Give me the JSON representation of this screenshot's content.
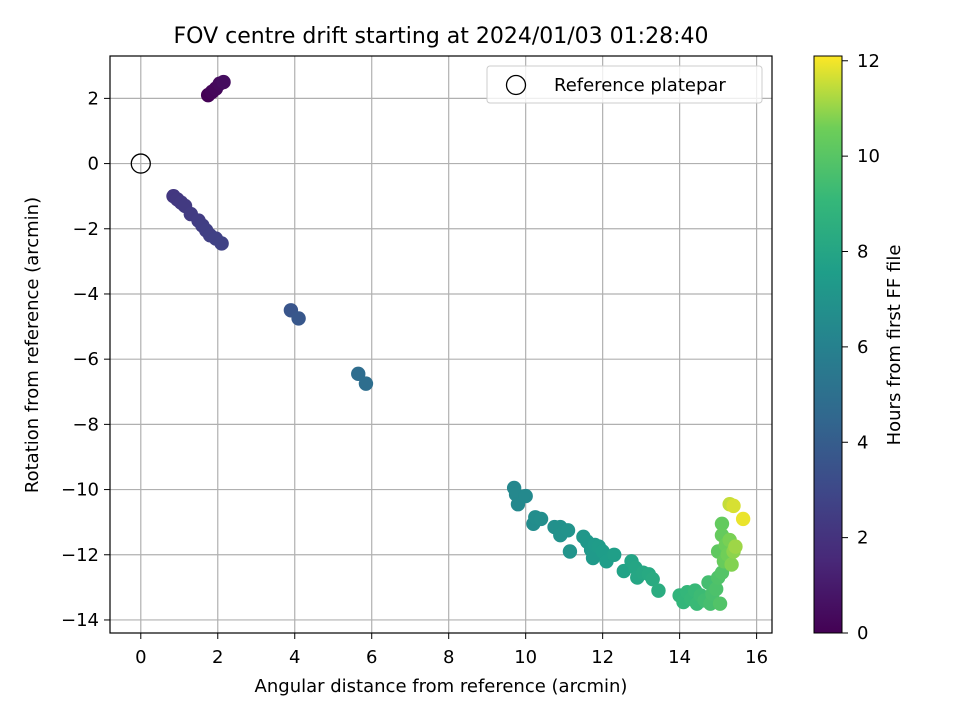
{
  "chart_data": {
    "type": "scatter",
    "title": "FOV centre drift starting at 2024/01/03 01:28:40",
    "xlabel": "Angular distance from reference (arcmin)",
    "ylabel": "Rotation from reference (arcmin)",
    "xlim": [
      -0.8,
      16.4
    ],
    "ylim": [
      -14.4,
      3.3
    ],
    "xticks": [
      0,
      2,
      4,
      6,
      8,
      10,
      12,
      14,
      16
    ],
    "yticks": [
      -14,
      -12,
      -10,
      -8,
      -6,
      -4,
      -2,
      0,
      2
    ],
    "grid": true,
    "legend": {
      "position": "top-right",
      "entries": [
        "Reference platepar"
      ]
    },
    "reference_point": {
      "x": 0,
      "y": 0,
      "label": "Reference platepar"
    },
    "colorbar": {
      "label": "Hours from first FF file",
      "min": 0,
      "max": 12.1,
      "ticks": [
        0,
        2,
        4,
        6,
        8,
        10,
        12
      ],
      "colormap": "viridis"
    },
    "points": [
      {
        "x": 1.75,
        "y": 2.1,
        "c": 0.05
      },
      {
        "x": 1.85,
        "y": 2.2,
        "c": 0.15
      },
      {
        "x": 1.95,
        "y": 2.3,
        "c": 0.25
      },
      {
        "x": 2.05,
        "y": 2.45,
        "c": 0.35
      },
      {
        "x": 2.15,
        "y": 2.5,
        "c": 0.45
      },
      {
        "x": 0.85,
        "y": -1.0,
        "c": 2.2
      },
      {
        "x": 0.95,
        "y": -1.1,
        "c": 2.25
      },
      {
        "x": 1.05,
        "y": -1.2,
        "c": 2.3
      },
      {
        "x": 1.15,
        "y": -1.3,
        "c": 2.35
      },
      {
        "x": 1.3,
        "y": -1.55,
        "c": 2.4
      },
      {
        "x": 1.5,
        "y": -1.75,
        "c": 2.45
      },
      {
        "x": 1.6,
        "y": -1.9,
        "c": 2.5
      },
      {
        "x": 1.7,
        "y": -2.05,
        "c": 2.55
      },
      {
        "x": 1.8,
        "y": -2.2,
        "c": 2.6
      },
      {
        "x": 1.95,
        "y": -2.3,
        "c": 2.65
      },
      {
        "x": 2.1,
        "y": -2.45,
        "c": 2.7
      },
      {
        "x": 3.9,
        "y": -4.5,
        "c": 3.6
      },
      {
        "x": 4.1,
        "y": -4.75,
        "c": 3.7
      },
      {
        "x": 5.65,
        "y": -6.45,
        "c": 4.8
      },
      {
        "x": 5.85,
        "y": -6.75,
        "c": 4.9
      },
      {
        "x": 9.7,
        "y": -9.95,
        "c": 6.3
      },
      {
        "x": 9.75,
        "y": -10.15,
        "c": 6.35
      },
      {
        "x": 9.8,
        "y": -10.45,
        "c": 6.4
      },
      {
        "x": 10.0,
        "y": -10.2,
        "c": 6.45
      },
      {
        "x": 10.2,
        "y": -11.05,
        "c": 6.6
      },
      {
        "x": 10.25,
        "y": -10.85,
        "c": 6.65
      },
      {
        "x": 10.4,
        "y": -10.9,
        "c": 6.7
      },
      {
        "x": 10.75,
        "y": -11.15,
        "c": 6.8
      },
      {
        "x": 10.9,
        "y": -11.15,
        "c": 6.85
      },
      {
        "x": 10.9,
        "y": -11.4,
        "c": 6.9
      },
      {
        "x": 11.1,
        "y": -11.25,
        "c": 6.95
      },
      {
        "x": 11.15,
        "y": -11.9,
        "c": 7.0
      },
      {
        "x": 11.5,
        "y": -11.45,
        "c": 7.2
      },
      {
        "x": 11.6,
        "y": -11.6,
        "c": 7.25
      },
      {
        "x": 11.7,
        "y": -11.85,
        "c": 7.3
      },
      {
        "x": 11.75,
        "y": -12.1,
        "c": 7.35
      },
      {
        "x": 11.8,
        "y": -11.7,
        "c": 7.4
      },
      {
        "x": 11.9,
        "y": -11.75,
        "c": 7.45
      },
      {
        "x": 12.0,
        "y": -11.9,
        "c": 7.5
      },
      {
        "x": 12.1,
        "y": -12.2,
        "c": 7.55
      },
      {
        "x": 12.3,
        "y": -12.0,
        "c": 7.65
      },
      {
        "x": 12.55,
        "y": -12.5,
        "c": 7.8
      },
      {
        "x": 12.75,
        "y": -12.2,
        "c": 7.9
      },
      {
        "x": 12.85,
        "y": -12.4,
        "c": 8.0
      },
      {
        "x": 12.9,
        "y": -12.7,
        "c": 8.05
      },
      {
        "x": 13.05,
        "y": -12.55,
        "c": 8.1
      },
      {
        "x": 13.2,
        "y": -12.6,
        "c": 8.2
      },
      {
        "x": 13.3,
        "y": -12.75,
        "c": 8.3
      },
      {
        "x": 13.45,
        "y": -13.1,
        "c": 8.4
      },
      {
        "x": 14.0,
        "y": -13.25,
        "c": 8.9
      },
      {
        "x": 14.1,
        "y": -13.45,
        "c": 8.95
      },
      {
        "x": 14.2,
        "y": -13.15,
        "c": 9.0
      },
      {
        "x": 14.3,
        "y": -13.35,
        "c": 9.1
      },
      {
        "x": 14.4,
        "y": -13.1,
        "c": 9.15
      },
      {
        "x": 14.45,
        "y": -13.5,
        "c": 9.2
      },
      {
        "x": 14.55,
        "y": -13.25,
        "c": 9.3
      },
      {
        "x": 14.65,
        "y": -13.4,
        "c": 9.4
      },
      {
        "x": 14.75,
        "y": -12.85,
        "c": 9.5
      },
      {
        "x": 14.8,
        "y": -13.5,
        "c": 9.55
      },
      {
        "x": 14.85,
        "y": -13.2,
        "c": 9.6
      },
      {
        "x": 14.95,
        "y": -13.05,
        "c": 9.7
      },
      {
        "x": 15.0,
        "y": -12.7,
        "c": 9.8
      },
      {
        "x": 15.05,
        "y": -13.5,
        "c": 9.85
      },
      {
        "x": 15.1,
        "y": -12.55,
        "c": 9.9
      },
      {
        "x": 15.0,
        "y": -11.9,
        "c": 10.2
      },
      {
        "x": 15.1,
        "y": -11.05,
        "c": 10.3
      },
      {
        "x": 15.1,
        "y": -11.4,
        "c": 10.35
      },
      {
        "x": 15.15,
        "y": -12.2,
        "c": 10.4
      },
      {
        "x": 15.2,
        "y": -11.7,
        "c": 10.5
      },
      {
        "x": 15.25,
        "y": -12.0,
        "c": 10.6
      },
      {
        "x": 15.3,
        "y": -11.55,
        "c": 10.7
      },
      {
        "x": 15.35,
        "y": -12.3,
        "c": 10.8
      },
      {
        "x": 15.4,
        "y": -11.9,
        "c": 10.9
      },
      {
        "x": 15.45,
        "y": -11.75,
        "c": 11.1
      },
      {
        "x": 15.3,
        "y": -10.45,
        "c": 11.5
      },
      {
        "x": 15.4,
        "y": -10.5,
        "c": 11.7
      },
      {
        "x": 15.65,
        "y": -10.9,
        "c": 11.9
      }
    ]
  }
}
